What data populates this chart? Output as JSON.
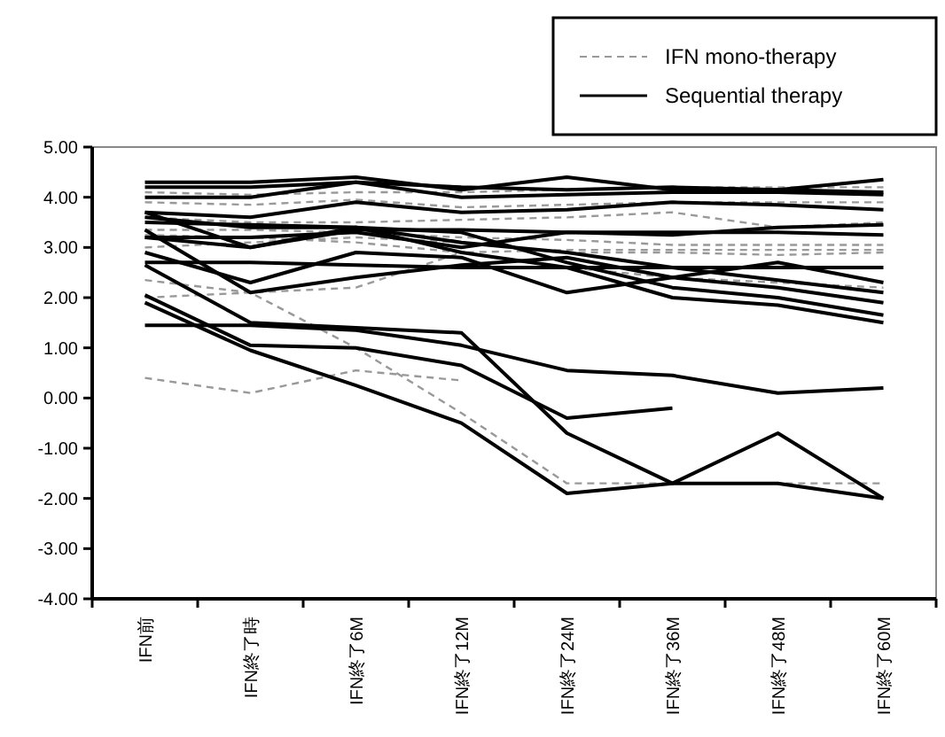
{
  "chart_data": {
    "type": "line",
    "categories": [
      "IFN前",
      "IFN終了時",
      "IFN終了6M",
      "IFN終了12M",
      "IFN終了24M",
      "IFN終了36M",
      "IFN終了48M",
      "IFN終了60M"
    ],
    "ylim": [
      -4,
      5
    ],
    "yticks": [
      {
        "value": -4,
        "label": "-4.00"
      },
      {
        "value": -3,
        "label": "-3.00"
      },
      {
        "value": -2,
        "label": "-2.00"
      },
      {
        "value": -1,
        "label": "-1.00"
      },
      {
        "value": 0,
        "label": "0.00"
      },
      {
        "value": 1,
        "label": "1.00"
      },
      {
        "value": 2,
        "label": "2.00"
      },
      {
        "value": 3,
        "label": "3.00"
      },
      {
        "value": 4,
        "label": "4.00"
      },
      {
        "value": 5,
        "label": "5.00"
      }
    ],
    "grid": false,
    "legend": "top right",
    "marker": "none",
    "series": [
      {
        "name": "IFN mono-therapy",
        "color": "#999999",
        "line_style": "dashed",
        "values": [
          4.1,
          4.05,
          4.1,
          4.1,
          4.15,
          4.2,
          4.2,
          4.2
        ]
      },
      {
        "color": "#999999",
        "line_style": "dashed",
        "values": [
          3.9,
          3.85,
          3.95,
          3.8,
          3.85,
          3.9,
          3.9,
          3.9
        ]
      },
      {
        "color": "#999999",
        "line_style": "dashed",
        "values": [
          3.6,
          3.5,
          3.5,
          3.55,
          3.6,
          3.7,
          3.4,
          3.5
        ]
      },
      {
        "color": "#999999",
        "line_style": "dashed",
        "values": [
          3.35,
          3.35,
          3.3,
          3.2,
          3.15,
          3.05,
          3.05,
          3.05
        ]
      },
      {
        "color": "#999999",
        "line_style": "dashed",
        "values": [
          3.25,
          3.2,
          3.1,
          2.9,
          2.95,
          2.95,
          2.95,
          2.95
        ]
      },
      {
        "color": "#999999",
        "line_style": "dashed",
        "values": [
          3.0,
          3.1,
          3.2,
          3.1,
          2.9,
          2.9,
          2.85,
          2.9
        ]
      },
      {
        "color": "#999999",
        "line_style": "dashed",
        "values": [
          2.0,
          2.1,
          2.2,
          2.9,
          2.6,
          2.4,
          2.3,
          2.2
        ]
      },
      {
        "color": "#999999",
        "line_style": "dashed",
        "values": [
          2.35,
          2.1,
          1.0,
          -0.3,
          -1.7,
          -1.7,
          -1.7,
          -1.7
        ]
      },
      {
        "color": "#999999",
        "line_style": "dashed",
        "values": [
          0.4,
          0.1,
          0.55,
          0.35,
          null,
          null,
          null,
          null
        ]
      },
      {
        "name": "Sequential therapy",
        "color": "#000000",
        "line_style": "solid",
        "values": [
          4.3,
          4.3,
          4.4,
          4.15,
          4.4,
          4.15,
          4.15,
          4.35
        ]
      },
      {
        "color": "#000000",
        "line_style": "solid",
        "values": [
          4.2,
          4.2,
          4.3,
          4.2,
          4.15,
          4.2,
          4.15,
          4.1
        ]
      },
      {
        "color": "#000000",
        "line_style": "solid",
        "values": [
          4.0,
          4.0,
          4.3,
          4.0,
          4.05,
          4.1,
          4.1,
          4.05
        ]
      },
      {
        "color": "#000000",
        "line_style": "solid",
        "values": [
          3.7,
          3.6,
          3.9,
          3.7,
          3.75,
          3.9,
          3.85,
          3.75
        ]
      },
      {
        "color": "#000000",
        "line_style": "solid",
        "values": [
          3.7,
          3.0,
          3.35,
          3.35,
          3.3,
          3.3,
          3.3,
          3.25
        ]
      },
      {
        "color": "#000000",
        "line_style": "solid",
        "values": [
          3.2,
          3.2,
          3.3,
          3.0,
          3.3,
          3.25,
          3.4,
          3.45
        ]
      },
      {
        "color": "#000000",
        "line_style": "solid",
        "values": [
          3.6,
          3.4,
          3.4,
          3.1,
          2.9,
          2.6,
          2.35,
          2.1
        ]
      },
      {
        "color": "#000000",
        "line_style": "solid",
        "values": [
          3.5,
          3.45,
          3.4,
          2.9,
          2.6,
          2.0,
          1.85,
          1.5
        ]
      },
      {
        "color": "#000000",
        "line_style": "solid",
        "values": [
          3.2,
          3.0,
          3.4,
          3.3,
          2.7,
          2.2,
          2.0,
          1.65
        ]
      },
      {
        "color": "#000000",
        "line_style": "solid",
        "values": [
          3.35,
          2.1,
          2.4,
          2.65,
          2.8,
          2.4,
          2.2,
          1.9
        ]
      },
      {
        "color": "#000000",
        "line_style": "solid",
        "values": [
          2.9,
          2.3,
          2.9,
          2.8,
          2.1,
          2.4,
          2.7,
          2.3
        ]
      },
      {
        "color": "#000000",
        "line_style": "solid",
        "values": [
          2.7,
          2.7,
          2.65,
          2.6,
          2.6,
          2.6,
          2.6,
          2.6
        ]
      },
      {
        "color": "#000000",
        "line_style": "solid",
        "values": [
          2.65,
          1.5,
          1.4,
          1.3,
          -0.7,
          -1.7,
          -0.7,
          -2.0
        ]
      },
      {
        "color": "#000000",
        "line_style": "solid",
        "values": [
          1.45,
          1.45,
          1.35,
          1.05,
          0.55,
          0.45,
          0.1,
          0.2
        ]
      },
      {
        "color": "#000000",
        "line_style": "solid",
        "values": [
          2.05,
          1.05,
          1.0,
          0.65,
          -0.4,
          -0.2,
          null,
          null
        ]
      },
      {
        "color": "#000000",
        "line_style": "solid",
        "values": [
          1.9,
          0.95,
          0.25,
          -0.5,
          -1.9,
          -1.7,
          -1.7,
          -2.0
        ]
      }
    ]
  }
}
